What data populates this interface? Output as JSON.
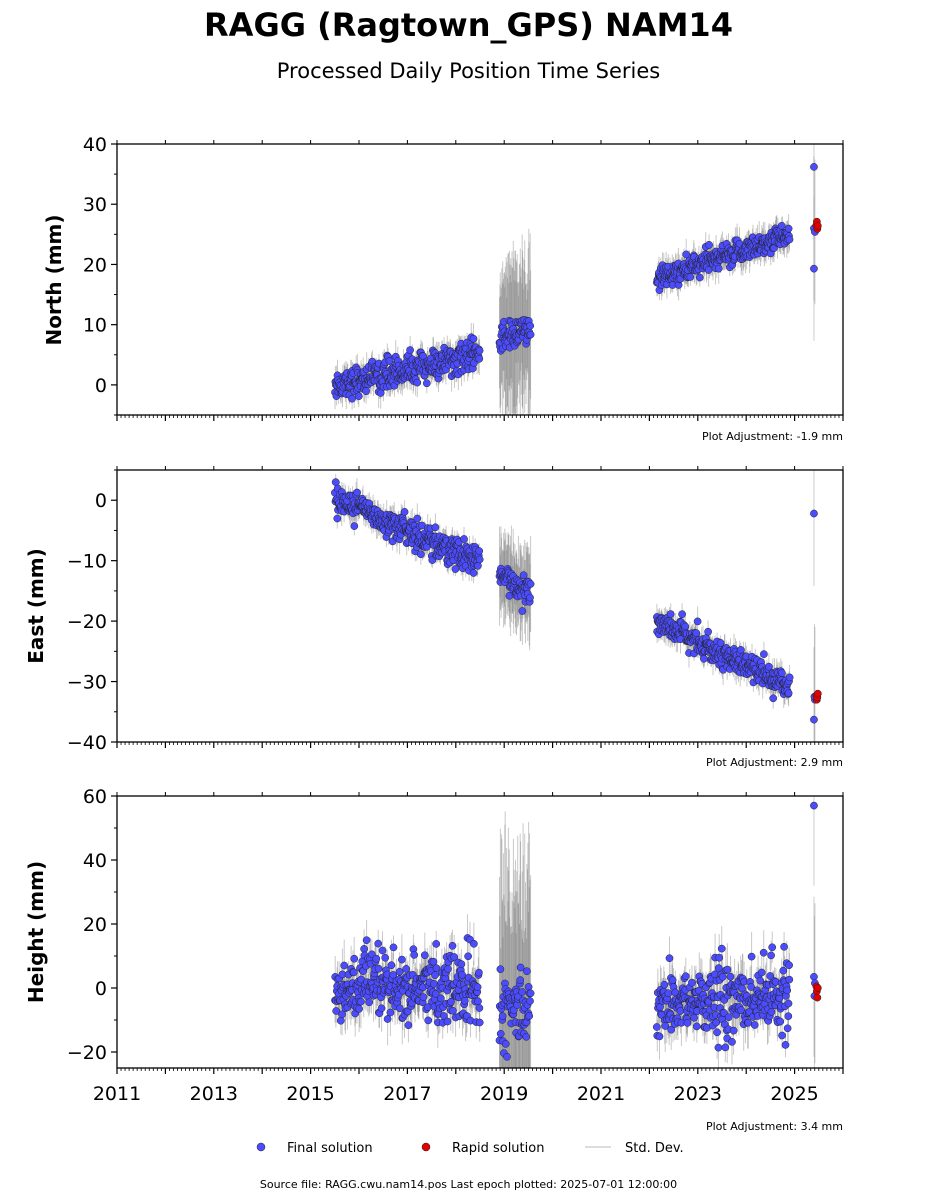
{
  "header": {
    "title": "RAGG (Ragtown_GPS) NAM14",
    "subtitle": "Processed Daily Position Time Series"
  },
  "legend": {
    "final_label": "Final solution",
    "rapid_label": "Rapid solution",
    "std_label": "Std. Dev.",
    "placement": "bottom-center"
  },
  "footer": {
    "source": "Source file: RAGG.cwu.nam14.pos  Last epoch plotted: 2025-07-01 12:00:00"
  },
  "colors": {
    "final": "#4c4cff",
    "rapid": "#e00000",
    "std_dev": "#666666"
  },
  "chart_data": [
    {
      "type": "scatter",
      "ylabel": "North (mm)",
      "adjustment": "Plot Adjustment: -1.9 mm",
      "xlim": [
        2011,
        2026
      ],
      "ylim": [
        -5,
        40
      ],
      "yticks": [
        0,
        10,
        20,
        30,
        40
      ],
      "ytick_labels": [
        "0",
        "10",
        "20",
        "30",
        "40"
      ],
      "segments": [
        {
          "x0": 2015.5,
          "x1": 2018.5,
          "y0": 0,
          "y1": 5,
          "scatter": 1.2,
          "sd": 2.0
        },
        {
          "x0": 2018.9,
          "x1": 2019.55,
          "y0": 8,
          "y1": 9,
          "scatter": 1.3,
          "sd": 11
        },
        {
          "x0": 2022.15,
          "x1": 2024.9,
          "y0": 17.5,
          "y1": 25,
          "scatter": 1.0,
          "sd": 2.0
        }
      ],
      "final_points": [
        [
          2025.4,
          36.2
        ],
        [
          2025.4,
          26.0
        ],
        [
          2025.4,
          19.3
        ],
        [
          2025.42,
          25.4
        ]
      ],
      "rapid_points": [
        [
          2025.45,
          26.5
        ],
        [
          2025.46,
          27.1
        ],
        [
          2025.47,
          25.9
        ],
        [
          2025.48,
          26.4
        ]
      ],
      "outlier_sd": 12
    },
    {
      "type": "scatter",
      "ylabel": "East (mm)",
      "adjustment": "Plot Adjustment: 2.9 mm",
      "xlim": [
        2011,
        2026
      ],
      "ylim": [
        -40,
        5
      ],
      "yticks": [
        -40,
        -30,
        -20,
        -10,
        0
      ],
      "ytick_labels": [
        "−40",
        "−30",
        "−20",
        "−10",
        "0"
      ],
      "segments": [
        {
          "x0": 2015.5,
          "x1": 2018.5,
          "y0": 0.5,
          "y1": -10.5,
          "scatter": 1.2,
          "sd": 1.8
        },
        {
          "x0": 2018.9,
          "x1": 2019.55,
          "y0": -12.5,
          "y1": -15,
          "scatter": 1.2,
          "sd": 6
        },
        {
          "x0": 2022.15,
          "x1": 2024.9,
          "y0": -20,
          "y1": -31,
          "scatter": 1.0,
          "sd": 1.8
        }
      ],
      "final_points": [
        [
          2025.4,
          -2.2
        ],
        [
          2025.4,
          -36.3
        ],
        [
          2025.42,
          -33.0
        ],
        [
          2025.41,
          -32.5
        ]
      ],
      "rapid_points": [
        [
          2025.45,
          -32.3
        ],
        [
          2025.46,
          -33.0
        ],
        [
          2025.47,
          -32.6
        ],
        [
          2025.48,
          -32.0
        ]
      ],
      "outlier_sd": 12
    },
    {
      "type": "scatter",
      "ylabel": "Height (mm)",
      "adjustment": "Plot Adjustment: 3.4 mm",
      "xlim": [
        2011,
        2026
      ],
      "ylim": [
        -25,
        60
      ],
      "yticks": [
        -20,
        0,
        20,
        40,
        60
      ],
      "ytick_labels": [
        "−20",
        "0",
        "20",
        "40",
        "60"
      ],
      "xticks": [
        2011,
        2013,
        2015,
        2017,
        2019,
        2021,
        2023,
        2025
      ],
      "xtick_labels": [
        "2011",
        "2013",
        "2015",
        "2017",
        "2019",
        "2021",
        "2023",
        "2025"
      ],
      "segments": [
        {
          "x0": 2015.5,
          "x1": 2018.5,
          "y0": 0,
          "y1": 0,
          "scatter": 5.5,
          "sd": 6
        },
        {
          "x0": 2018.9,
          "x1": 2019.55,
          "y0": -8,
          "y1": -6,
          "scatter": 5.5,
          "sd": 40
        },
        {
          "x0": 2022.15,
          "x1": 2024.9,
          "y0": -5,
          "y1": -3,
          "scatter": 5.5,
          "sd": 6
        }
      ],
      "final_points": [
        [
          2025.4,
          57.0
        ],
        [
          2025.4,
          3.5
        ],
        [
          2025.41,
          -2.5
        ],
        [
          2025.42,
          1.5
        ]
      ],
      "rapid_points": [
        [
          2025.45,
          0.5
        ],
        [
          2025.46,
          -1.0
        ],
        [
          2025.47,
          -3.0
        ],
        [
          2025.48,
          0.0
        ]
      ],
      "outlier_sd": 25
    }
  ]
}
